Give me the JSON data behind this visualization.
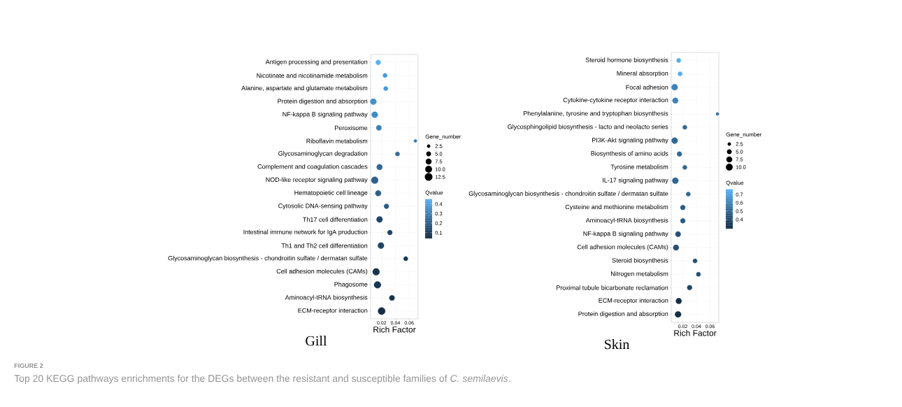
{
  "chart_data": [
    {
      "type": "bubble",
      "title": "Gill",
      "xlabel": "Rich Factor",
      "legend_title": "Gene_number",
      "clabel": "Qvalue",
      "orientation": "horizontal",
      "marker": "circle",
      "grid": true,
      "categories": [
        "Antigen processing and presentation",
        "Nicotinate and nicotinamide metabolism",
        "Alanine, aspartate and glutamate metabolism",
        "Protein digestion and absorption",
        "NF-kappa B signaling pathway",
        "Peroxisome",
        "Riboflavin metabolism",
        "Glycosaminoglycan degradation",
        "Complement and coagulation cascades",
        "NOD-like receptor signaling pathway",
        "Hematopoietic cell lineage",
        "Cytosolic DNA-sensing pathway",
        "Th17 cell differentiation",
        "Intestinal immune network for IgA production",
        "Th1 and Th2 cell differentiation",
        "Glycosaminoglycan biosynthesis - chondroitin sulfate / dermatan sulfate",
        "Cell adhesion molecules (CAMs)",
        "Phagosome",
        "Aminoacyl-tRNA biosynthesis",
        "ECM-receptor interaction"
      ],
      "values": [
        0.015,
        0.025,
        0.026,
        0.008,
        0.01,
        0.016,
        0.069,
        0.043,
        0.017,
        0.01,
        0.015,
        0.027,
        0.017,
        0.032,
        0.019,
        0.055,
        0.012,
        0.014,
        0.035,
        0.02
      ],
      "sizes": [
        5,
        4,
        4,
        8,
        8,
        6,
        2,
        4,
        7,
        10,
        7,
        5,
        8,
        5,
        8,
        4,
        10,
        10,
        6,
        11
      ],
      "cvalues": [
        0.45,
        0.38,
        0.38,
        0.35,
        0.33,
        0.3,
        0.28,
        0.25,
        0.23,
        0.2,
        0.2,
        0.18,
        0.12,
        0.12,
        0.12,
        0.08,
        0.07,
        0.07,
        0.06,
        0.05
      ],
      "size_legend": [
        {
          "value": 2.5,
          "label": "2.5"
        },
        {
          "value": 5,
          "label": "5.0"
        },
        {
          "value": 7.5,
          "label": "7.5"
        },
        {
          "value": 10,
          "label": "10.0"
        },
        {
          "value": 12.5,
          "label": "12.5"
        }
      ],
      "clim": [
        0.04,
        0.45
      ],
      "cticks": [
        0.1,
        0.2,
        0.3,
        0.4
      ],
      "xlim": [
        0.004,
        0.073
      ],
      "xticks": [
        0.02,
        0.04,
        0.06
      ],
      "annotations": [
        "FIGURE 2",
        "Top 20 KEGG pathways enrichments for the DEGs between the resistant and susceptible families of *C. semilaevis*."
      ]
    },
    {
      "type": "bubble",
      "title": "Skin",
      "xlabel": "Rich Factor",
      "legend_title": "Gene_number",
      "clabel": "Qvalue",
      "orientation": "horizontal",
      "marker": "circle",
      "grid": true,
      "categories": [
        "Steroid hormone biosynthesis",
        "Mineral absorption",
        "Focal adhesion",
        "Cytokine-cytokine receptor interaction",
        "Phenylalanine, tyrosine and tryptophan biosynthesis",
        "Glycosphingolipid biosynthesis - lacto and neolacto series",
        "PI3K-Akt signaling pathway",
        "Biosynthesis of amino acids",
        "Tyrosine metabolism",
        "IL-17 signaling pathway",
        "Glycosaminoglycan biosynthesis - chondroitin sulfate / dermatan sulfate",
        "Cysteine and methionine metabolism",
        "Aminoacyl-tRNA biosynthesis",
        "NF-kappa B signaling pathway",
        "Cell adhesion molecules (CAMs)",
        "Steroid biosynthesis",
        "Nitrogen metabolism",
        "Proximal tubule bicarbonate reclamation",
        "ECM-receptor interaction",
        "Protein digestion and absorption"
      ],
      "values": [
        0.014,
        0.016,
        0.008,
        0.009,
        0.071,
        0.023,
        0.008,
        0.015,
        0.023,
        0.009,
        0.028,
        0.02,
        0.02,
        0.013,
        0.01,
        0.038,
        0.043,
        0.03,
        0.014,
        0.013
      ],
      "sizes": [
        4,
        4,
        8,
        7,
        2,
        4,
        8,
        5,
        4,
        8,
        4,
        5,
        5,
        6,
        7,
        4,
        4,
        5,
        7,
        8
      ],
      "cvalues": [
        0.75,
        0.74,
        0.6,
        0.6,
        0.55,
        0.5,
        0.5,
        0.5,
        0.5,
        0.5,
        0.5,
        0.45,
        0.45,
        0.42,
        0.42,
        0.42,
        0.42,
        0.38,
        0.3,
        0.3
      ],
      "size_legend": [
        {
          "value": 2.5,
          "label": "2.5"
        },
        {
          "value": 5,
          "label": "5.0"
        },
        {
          "value": 7.5,
          "label": "7.5"
        },
        {
          "value": 10,
          "label": "10.0"
        }
      ],
      "clim": [
        0.29,
        0.76
      ],
      "cticks": [
        0.4,
        0.5,
        0.6,
        0.7
      ],
      "xlim": [
        0.003,
        0.073
      ],
      "xticks": [
        0.02,
        0.04,
        0.06
      ]
    }
  ]
}
